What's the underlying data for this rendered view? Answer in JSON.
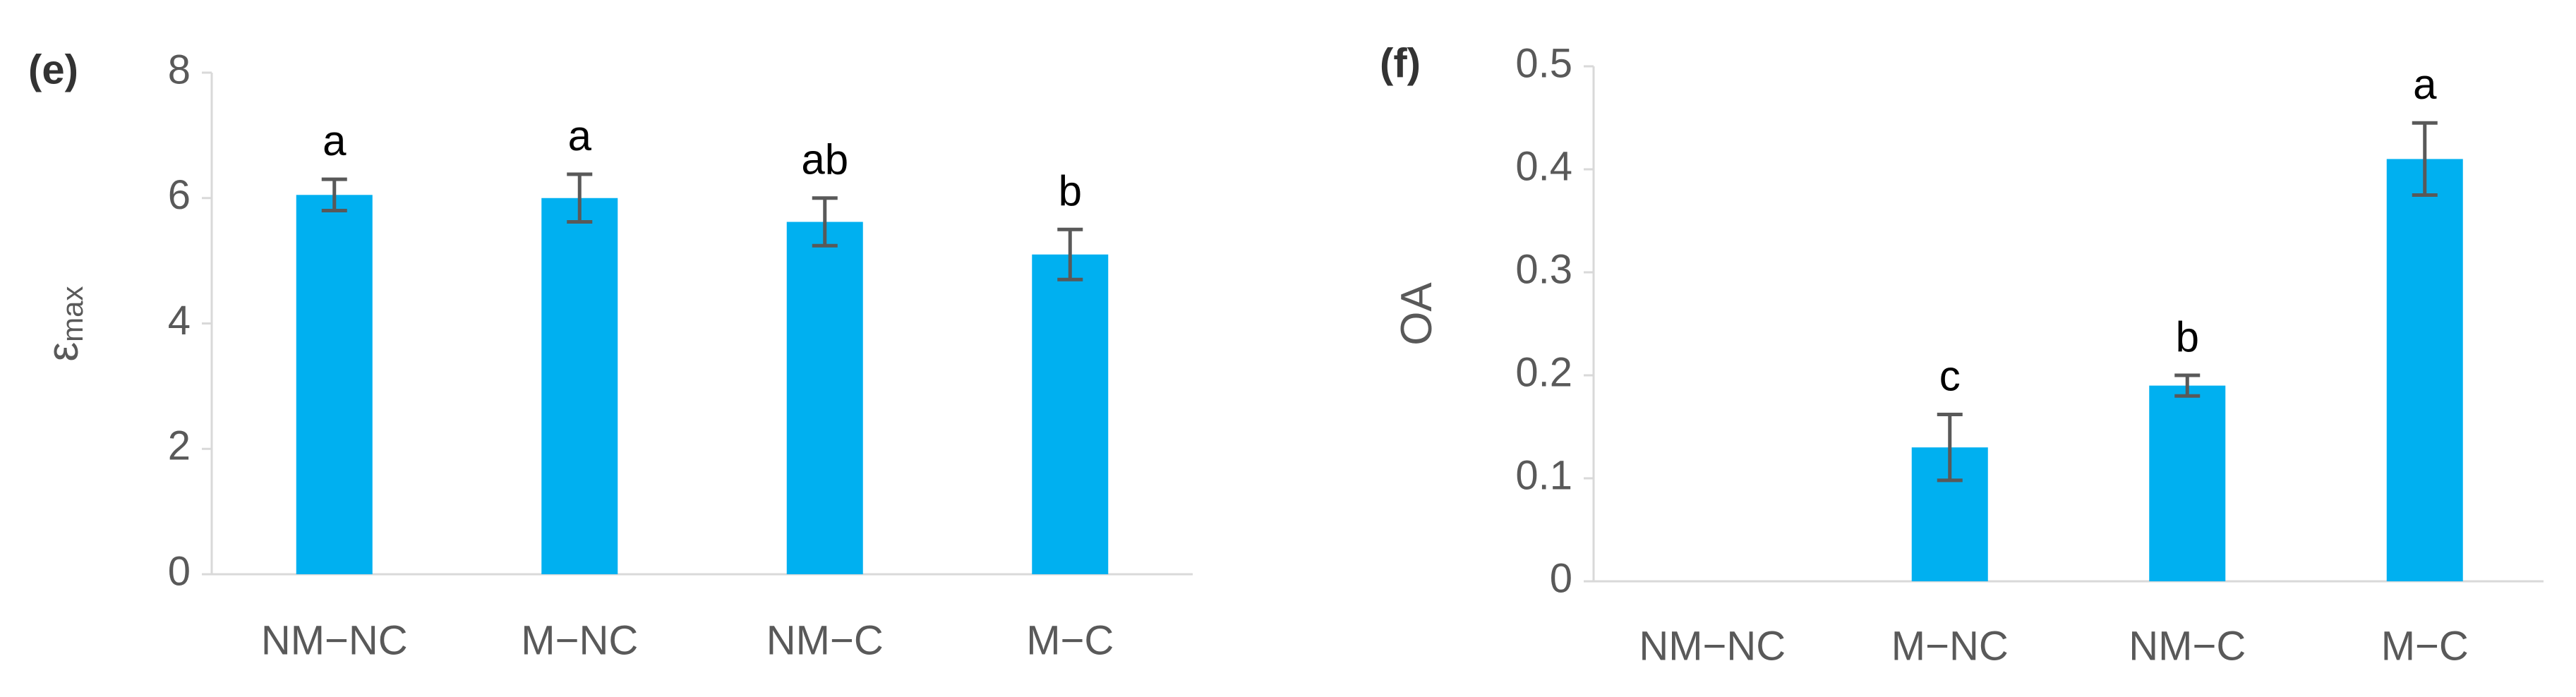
{
  "chart_data": [
    {
      "type": "bar",
      "panel_label": "(e)",
      "ylabel": {
        "main": "ε",
        "sub": "max"
      },
      "categories": [
        "NM−NC",
        "M−NC",
        "NM−C",
        "M−C"
      ],
      "values": [
        6.05,
        6.0,
        5.62,
        5.1
      ],
      "errors": [
        0.25,
        0.38,
        0.38,
        0.4
      ],
      "letters": [
        "a",
        "a",
        "ab",
        "b"
      ],
      "color": "#00b0f0",
      "ylim": [
        0,
        8
      ],
      "yticks": [
        0,
        2,
        4,
        6,
        8
      ]
    },
    {
      "type": "bar",
      "panel_label": "(f)",
      "ylabel": {
        "main": "OA"
      },
      "categories": [
        "NM−NC",
        "M−NC",
        "NM−C",
        "M−C"
      ],
      "values": [
        0,
        0.13,
        0.19,
        0.41
      ],
      "errors": [
        null,
        0.032,
        0.01,
        0.035
      ],
      "letters": [
        null,
        "c",
        "b",
        "a"
      ],
      "color": "#00b0f0",
      "ylim": [
        0,
        0.5
      ],
      "yticks": [
        0,
        0.1,
        0.2,
        0.3,
        0.4,
        0.5
      ]
    }
  ]
}
